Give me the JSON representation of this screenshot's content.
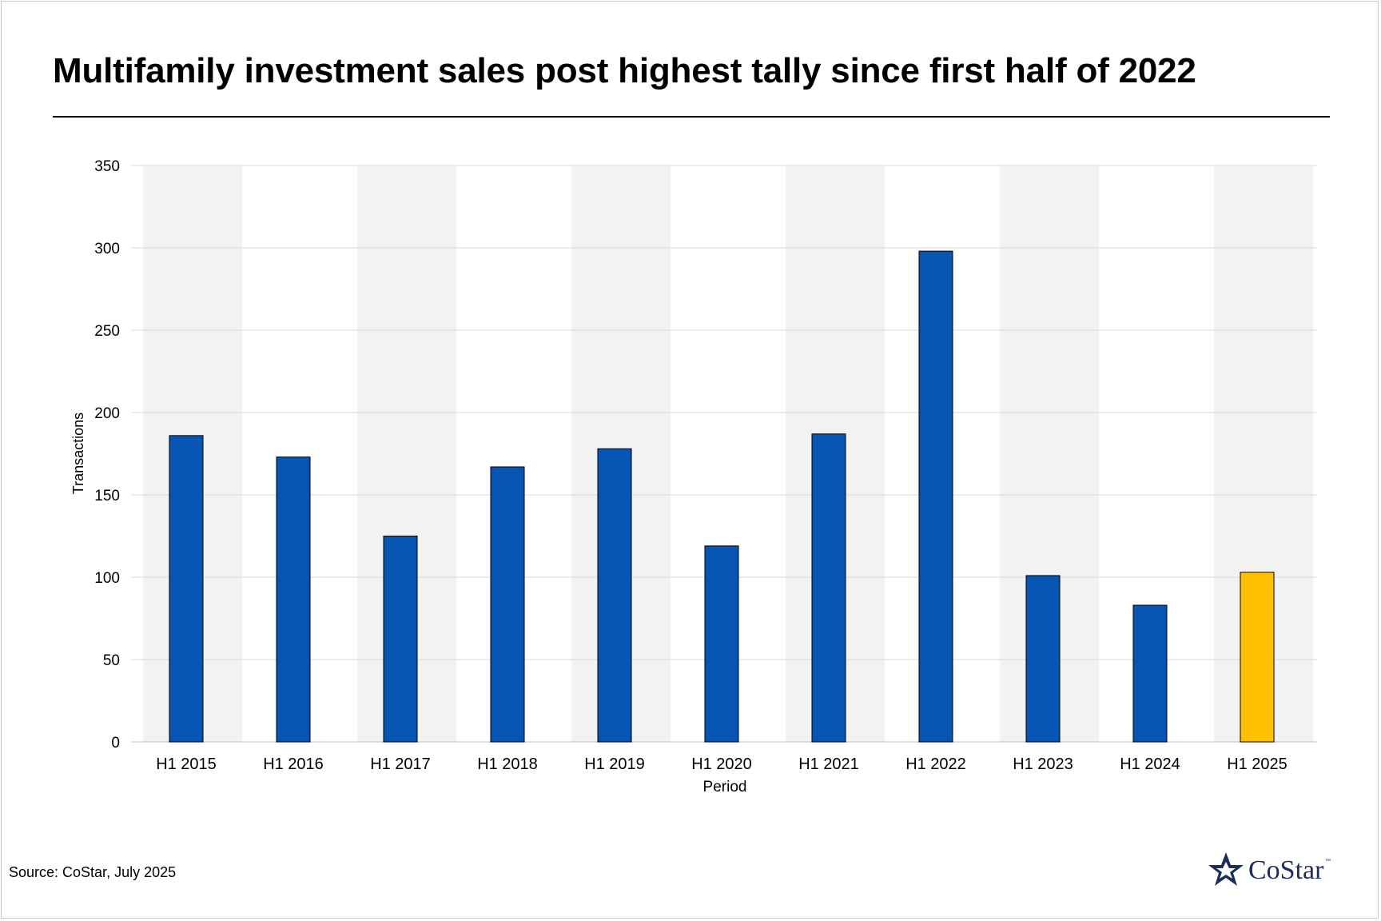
{
  "title": "Multifamily investment sales post highest tally since first half of 2022",
  "source": "Source: CoStar, July 2025",
  "logo": {
    "text": "CoStar",
    "tm": "™",
    "color": "#1c2d58"
  },
  "colors": {
    "bar": "#0655b3",
    "highlight": "#ffc000",
    "band": "#f2f2f2",
    "grid": "#d9d9d9"
  },
  "chart_data": {
    "type": "bar",
    "title": "Multifamily investment sales post highest tally since first half of 2022",
    "xlabel": "Period",
    "ylabel": "Transactions",
    "ylim": [
      0,
      350
    ],
    "yticks": [
      0,
      50,
      100,
      150,
      200,
      250,
      300,
      350
    ],
    "grid": true,
    "categories": [
      "H1 2015",
      "H1 2016",
      "H1 2017",
      "H1 2018",
      "H1 2019",
      "H1 2020",
      "H1 2021",
      "H1 2022",
      "H1 2023",
      "H1 2024",
      "H1 2025"
    ],
    "values": [
      186,
      173,
      125,
      167,
      178,
      119,
      187,
      298,
      101,
      83,
      103
    ],
    "highlight_category": "H1 2025"
  }
}
